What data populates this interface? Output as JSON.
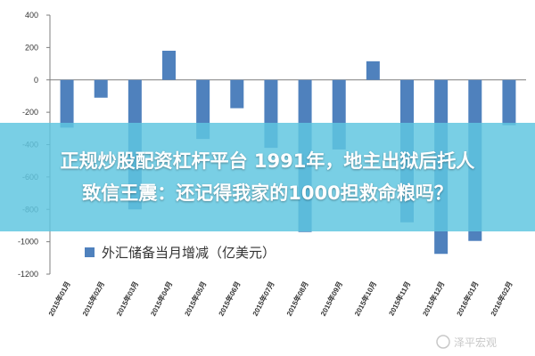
{
  "chart_data": {
    "type": "bar",
    "categories": [
      "2015年01月",
      "2015年02月",
      "2015年03月",
      "2015年04月",
      "2015年05月",
      "2015年06月",
      "2015年07月",
      "2015年08月",
      "2015年09月",
      "2015年10月",
      "2015年11月",
      "2015年12月",
      "2016年01月",
      "2016年02月"
    ],
    "series": [
      {
        "name": "外汇储备当月增减（亿美元）",
        "values": [
          -295,
          -110,
          -800,
          180,
          -365,
          -175,
          -420,
          -940,
          -430,
          115,
          -880,
          -1075,
          -995,
          -280
        ]
      }
    ],
    "yticks": [
      400,
      200,
      0,
      -200,
      -400,
      -600,
      -800,
      -1000,
      -1200
    ],
    "ylim": [
      -1200,
      400
    ],
    "grid": false,
    "legend_position": "bottom-left",
    "bar_color": "#4f81bd"
  },
  "title_banner": {
    "line1": "正规炒股配资杠杆平台 1991年，地主出狱后托人",
    "line2": "致信王震：还记得我家的1000担救命粮吗？",
    "color": "#5fc6e0"
  },
  "watermark": {
    "text": "泽平宏观"
  }
}
